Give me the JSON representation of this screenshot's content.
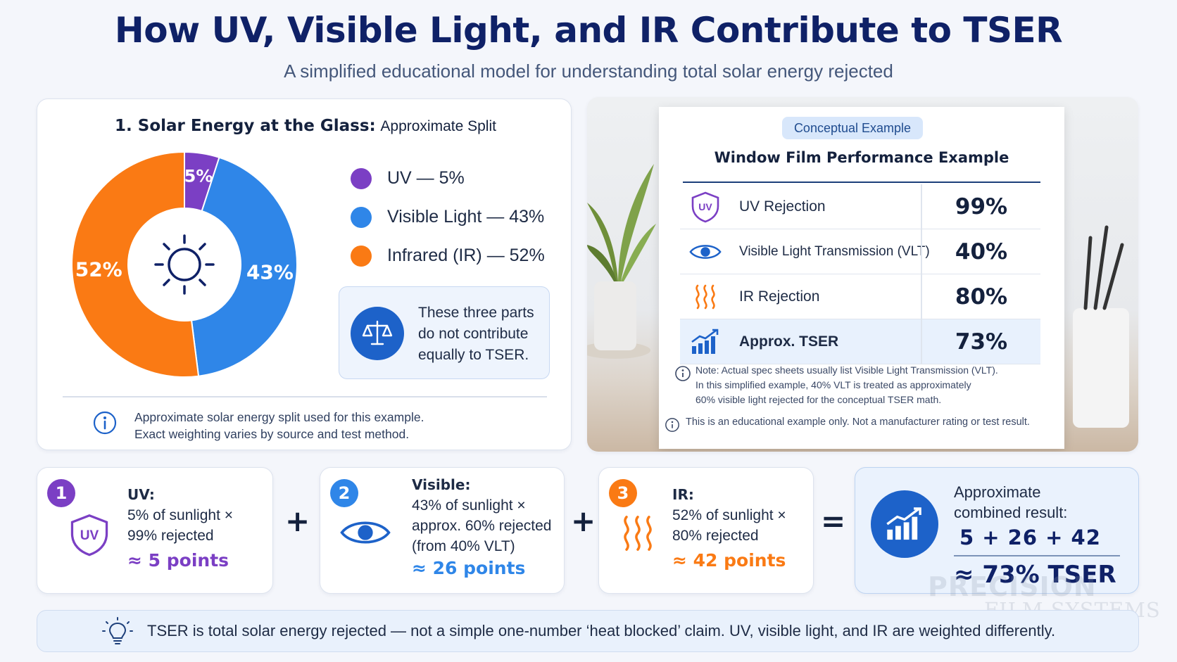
{
  "header": {
    "title": "How UV, Visible Light, and IR Contribute to TSER",
    "subtitle": "A simplified educational model for understanding total solar energy rejected"
  },
  "split_panel": {
    "title_bold": "1. Solar Energy at the Glass:",
    "title_rest": "Approximate Split",
    "slices": [
      {
        "name": "UV",
        "value": 5,
        "label": "5%",
        "color": "#7b3fc4"
      },
      {
        "name": "Visible Light",
        "value": 43,
        "label": "43%",
        "color": "#2f86e8"
      },
      {
        "name": "Infrared (IR)",
        "value": 52,
        "label": "52%",
        "color": "#fa7a14"
      }
    ],
    "legend": [
      {
        "label": "UV — 5%",
        "color": "#7b3fc4"
      },
      {
        "label": "Visible Light — 43%",
        "color": "#2f86e8"
      },
      {
        "label": "Infrared (IR) — 52%",
        "color": "#fa7a14"
      }
    ],
    "info_box": "These three parts do not contribute equally to TSER.",
    "note_line1": "Approximate solar energy split used for this example.",
    "note_line2": "Exact weighting varies by source and test method."
  },
  "example_panel": {
    "badge": "Conceptual Example",
    "title": "Window Film Performance Example",
    "rows": [
      {
        "label": "UV Rejection",
        "value": "99%",
        "icon": "uv-shield-icon"
      },
      {
        "label": "Visible Light Transmission (VLT)",
        "value": "40%",
        "icon": "eye-icon"
      },
      {
        "label": "IR Rejection",
        "value": "80%",
        "icon": "heat-waves-icon"
      },
      {
        "label": "Approx. TSER",
        "value": "73%",
        "icon": "chart-up-icon"
      }
    ],
    "note_line1": "Note: Actual spec sheets usually list Visible Light Transmission (VLT).",
    "note_line2": "In this simplified example, 40% VLT is treated as approximately",
    "note_line3": "60% visible light rejected for the conceptual TSER math.",
    "footer": "This is an educational example only. Not a manufacturer rating or test result."
  },
  "calc": {
    "uv": {
      "num": "1",
      "head": "UV:",
      "line1": "5% of sunlight ×",
      "line2": "99% rejected",
      "points": "≈ 5 points",
      "color": "#7b3fc4",
      "icon_text": "UV"
    },
    "visible": {
      "num": "2",
      "head": "Visible:",
      "line1": "43% of sunlight ×",
      "line2": "approx. 60% rejected",
      "line3": "(from 40% VLT)",
      "points": "≈ 26 points",
      "color": "#2f86e8"
    },
    "ir": {
      "num": "3",
      "head": "IR:",
      "line1": "52% of sunlight ×",
      "line2": "80% rejected",
      "points": "≈ 42 points",
      "color": "#fa7a14"
    },
    "plus": "+",
    "equals": "=",
    "total": {
      "line1": "Approximate",
      "line2": "combined result:",
      "sum": "5 + 26 + 42",
      "result": "≈ 73% TSER"
    }
  },
  "watermark": {
    "line1": "PRECISION",
    "line2": "FILM SYSTEMS"
  },
  "banner": {
    "text": "TSER is total solar energy rejected — not a simple one-number ‘heat blocked’ claim. UV, visible light, and IR are weighted differently."
  }
}
